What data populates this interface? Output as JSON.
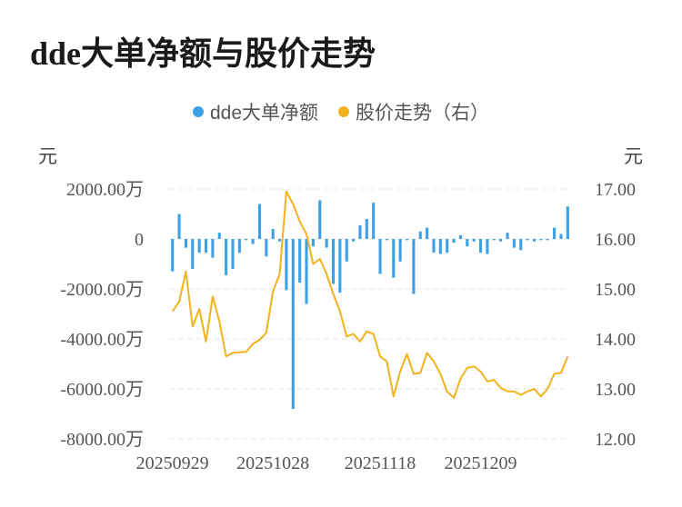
{
  "chart_data": {
    "type": "bar",
    "title": "dde大单净额与股价走势",
    "legend": [
      {
        "label": "dde大单净额",
        "color": "#3aa1e6"
      },
      {
        "label": "股价走势（右）",
        "color": "#f2b21e"
      }
    ],
    "y_left_unit": "元",
    "y_right_unit": "元",
    "y_left_ticks": [
      "2000.00万",
      "0",
      "-2000.00万",
      "-4000.00万",
      "-6000.00万",
      "-8000.00万"
    ],
    "y_right_ticks": [
      "17.00",
      "16.00",
      "15.00",
      "14.00",
      "13.00",
      "12.00"
    ],
    "x_tick_labels": [
      "20250929",
      "20251028",
      "20251118",
      "20251209"
    ],
    "ylim_left": [
      -8000,
      2000
    ],
    "ylim_right": [
      12,
      17
    ],
    "grid": true,
    "legend_position": "top",
    "series": [
      {
        "name": "dde大单净额",
        "kind": "bar",
        "axis": "left",
        "color": "#3aa1e6",
        "values": [
          -1300,
          1000,
          -350,
          -1200,
          -550,
          -550,
          -750,
          250,
          -1450,
          -1200,
          -550,
          -50,
          -200,
          1400,
          -700,
          400,
          -100,
          -2050,
          -6800,
          -1750,
          -2600,
          -300,
          1550,
          -350,
          -1800,
          -2150,
          -900,
          -100,
          550,
          800,
          1450,
          -1400,
          -50,
          -1550,
          -900,
          -50,
          -2200,
          300,
          450,
          -550,
          -600,
          -550,
          -150,
          150,
          -300,
          -100,
          -550,
          -600,
          -50,
          -100,
          250,
          -350,
          -450,
          -50,
          -100,
          -50,
          -50,
          450,
          200,
          1300
        ]
      },
      {
        "name": "股价走势（右）",
        "kind": "line",
        "axis": "right",
        "color": "#f2b21e",
        "values": [
          14.55,
          14.75,
          15.35,
          14.25,
          14.6,
          13.95,
          14.85,
          14.35,
          13.65,
          13.72,
          13.73,
          13.74,
          13.9,
          13.98,
          14.12,
          14.95,
          15.3,
          16.95,
          16.7,
          16.35,
          16.1,
          15.5,
          15.6,
          15.3,
          14.9,
          14.55,
          14.05,
          14.1,
          13.95,
          14.15,
          14.1,
          13.65,
          13.55,
          12.85,
          13.35,
          13.7,
          13.3,
          13.32,
          13.72,
          13.55,
          13.3,
          12.95,
          12.82,
          13.2,
          13.42,
          13.45,
          13.35,
          13.15,
          13.18,
          13.02,
          12.95,
          12.95,
          12.88,
          12.95,
          13.0,
          12.85,
          13.0,
          13.3,
          13.32,
          13.65
        ]
      }
    ]
  }
}
